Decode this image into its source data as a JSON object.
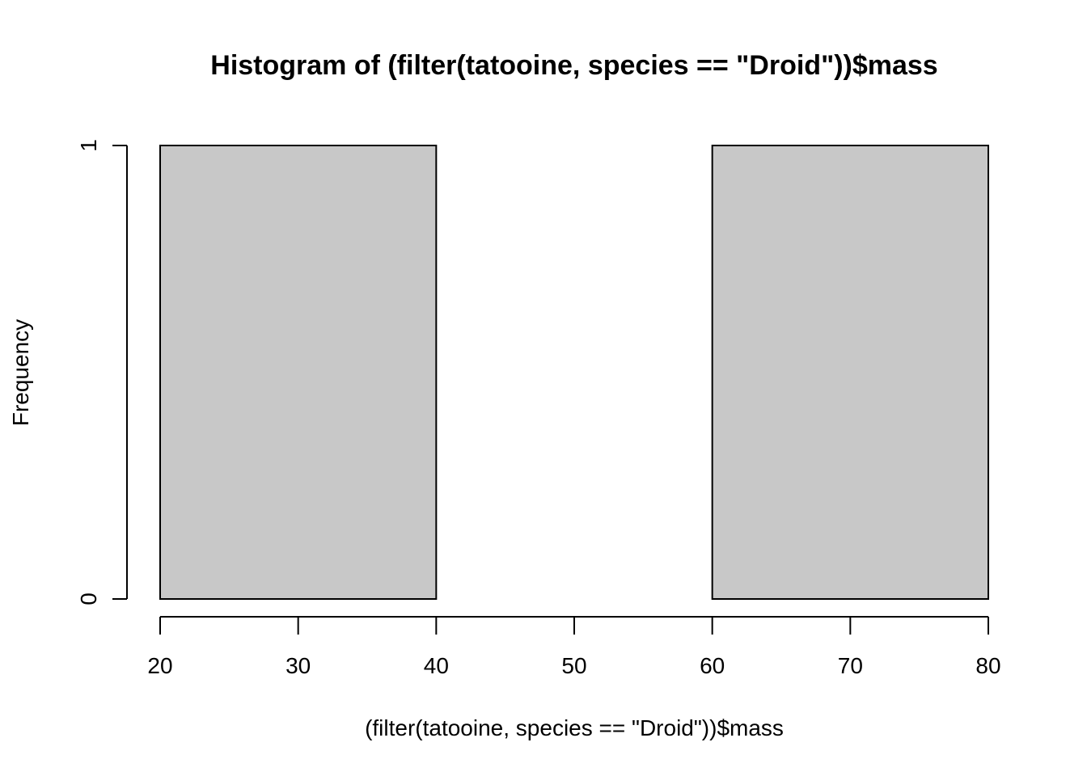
{
  "chart_data": {
    "type": "bar",
    "title": "Histogram of (filter(tatooine, species == \"Droid\"))$mass",
    "xlabel": "(filter(tatooine, species == \"Droid\"))$mass",
    "ylabel": "Frequency",
    "bins": [
      {
        "from": 20,
        "to": 40,
        "count": 1
      },
      {
        "from": 40,
        "to": 60,
        "count": 0
      },
      {
        "from": 60,
        "to": 80,
        "count": 1
      }
    ],
    "xlim": [
      20,
      80
    ],
    "ylim": [
      0,
      1
    ],
    "x_ticks": [
      "20",
      "30",
      "40",
      "50",
      "60",
      "70",
      "80"
    ],
    "y_ticks": [
      "0",
      "1"
    ],
    "bar_fill": "#c8c8c8",
    "bar_stroke": "#000000",
    "grid": false
  }
}
